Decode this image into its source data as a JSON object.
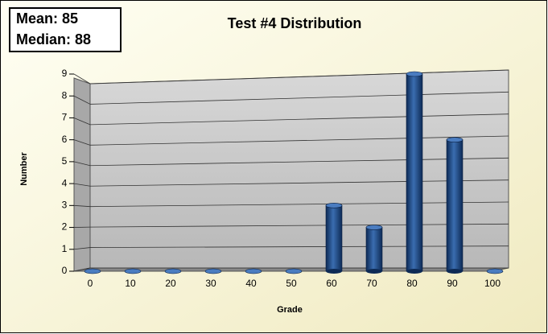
{
  "chart_data": {
    "type": "bar3d",
    "title": "Test #4 Distribution",
    "annotations": [
      "Mean: 85",
      "Median: 88"
    ],
    "x_label": "Grade",
    "y_label": "Number",
    "categories": [
      "0",
      "10",
      "20",
      "30",
      "40",
      "50",
      "60",
      "70",
      "80",
      "90",
      "100"
    ],
    "values": [
      0,
      0,
      0,
      0,
      0,
      0,
      3,
      2,
      9,
      6,
      0
    ],
    "color": "#1f4e8c",
    "ylim": [
      0,
      9
    ],
    "yticks": [
      0,
      1,
      2,
      3,
      4,
      5,
      6,
      7,
      8,
      9
    ],
    "grid": true
  }
}
